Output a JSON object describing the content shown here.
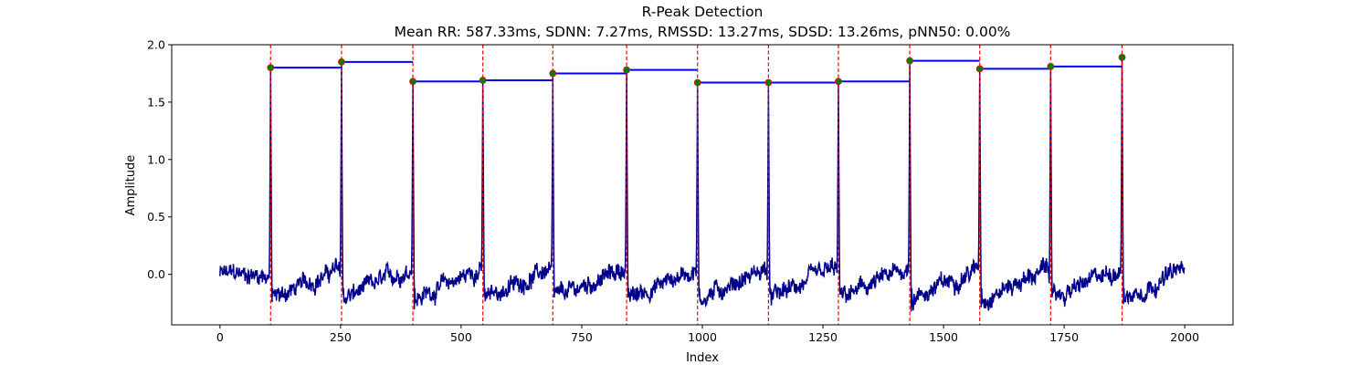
{
  "chart_data": {
    "type": "line",
    "title": "R-Peak Detection",
    "subtitle": "Mean RR: 587.33ms, SDNN: 7.27ms, RMSSD: 13.27ms, SDSD: 13.26ms, pNN50: 0.00%",
    "xlabel": "Index",
    "ylabel": "Amplitude",
    "xlim": [
      -100,
      2100
    ],
    "ylim": [
      -0.44,
      2.0
    ],
    "x_ticks": [
      0,
      250,
      500,
      750,
      1000,
      1250,
      1500,
      1750,
      2000
    ],
    "y_ticks": [
      0.0,
      0.5,
      1.0,
      1.5,
      2.0
    ],
    "grid": false,
    "signal_length": 2000,
    "r_peaks": {
      "indices": [
        105,
        252,
        400,
        545,
        690,
        843,
        990,
        1137,
        1282,
        1430,
        1575,
        1722,
        1870
      ],
      "amplitudes": [
        1.8,
        1.85,
        1.68,
        1.69,
        1.75,
        1.78,
        1.67,
        1.67,
        1.68,
        1.86,
        1.79,
        1.81,
        1.89
      ]
    },
    "colors": {
      "signal": "#00008b",
      "peak_line": "#ff0000",
      "peak_marker": "#008000",
      "rr_segment": "#0000ff"
    }
  }
}
